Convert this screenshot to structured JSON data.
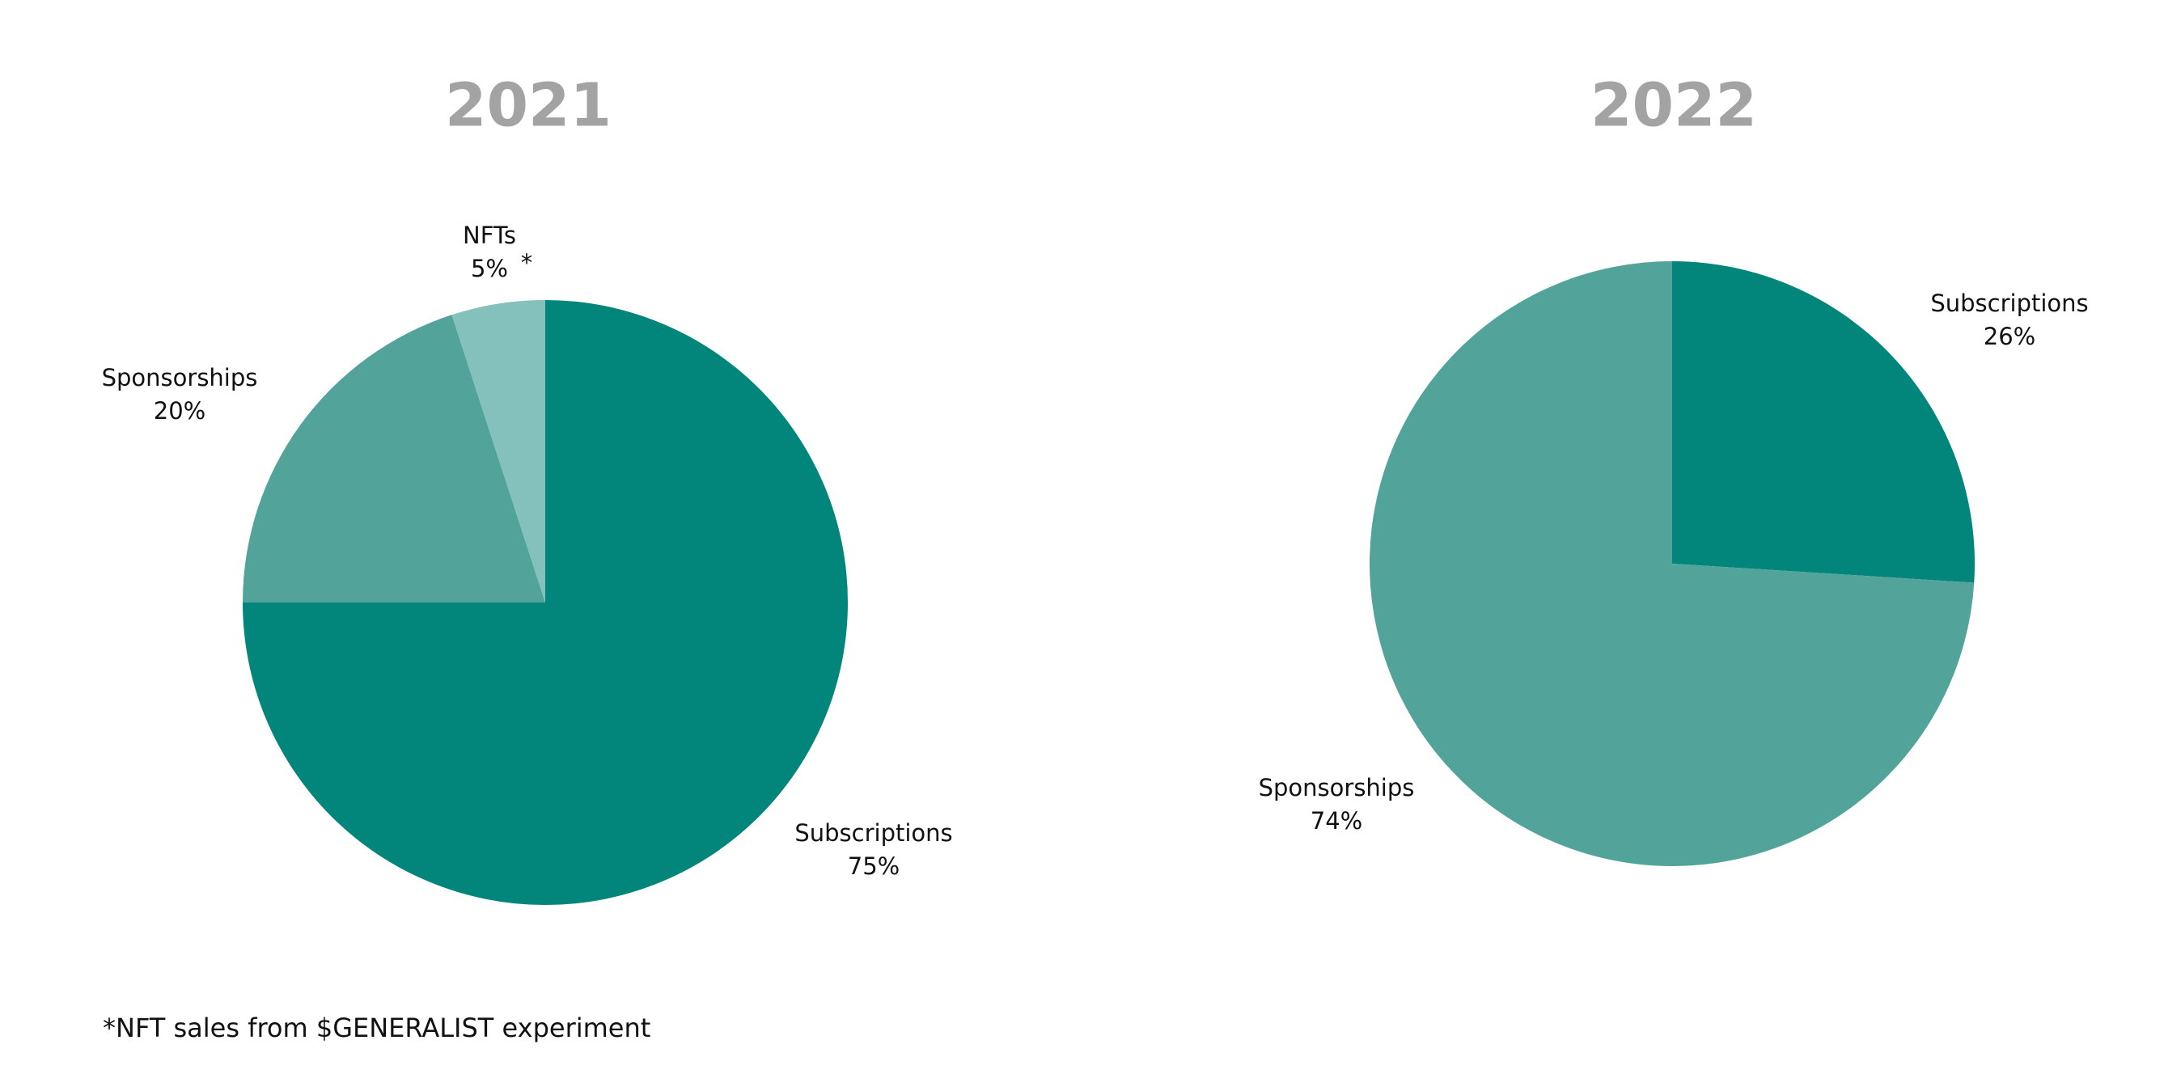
{
  "chart_data": [
    {
      "type": "pie",
      "title": "2021",
      "categories": [
        "Subscriptions",
        "Sponsorships",
        "NFTs"
      ],
      "values": [
        75,
        20,
        5
      ],
      "value_labels": [
        "75%",
        "20%",
        "5%"
      ],
      "colors": [
        "#02857a",
        "#52a39a",
        "#85c1bc"
      ],
      "annotation": "*"
    },
    {
      "type": "pie",
      "title": "2022",
      "categories": [
        "Subscriptions",
        "Sponsorships"
      ],
      "values": [
        26,
        74
      ],
      "value_labels": [
        "26%",
        "74%"
      ],
      "colors": [
        "#02857a",
        "#52a39a"
      ]
    }
  ],
  "footnote": "*NFT sales from $GENERALIST experiment"
}
